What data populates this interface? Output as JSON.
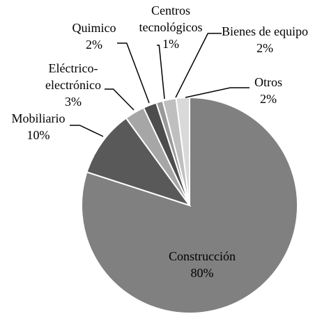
{
  "chart_data": {
    "type": "pie",
    "categories": [
      "Construcción",
      "Mobiliario",
      "Eléctrico-electrónico",
      "Quimico",
      "Centros tecnológicos",
      "Bienes de equipo",
      "Otros"
    ],
    "values": [
      80,
      10,
      3,
      2,
      1,
      2,
      2
    ],
    "value_labels": [
      "80%",
      "10%",
      "3%",
      "2%",
      "1%",
      "2%",
      "2%"
    ],
    "colors": [
      "#808080",
      "#595959",
      "#a6a6a6",
      "#4d4d4d",
      "#9a9a9a",
      "#bfbfbf",
      "#d9d9d9"
    ]
  }
}
